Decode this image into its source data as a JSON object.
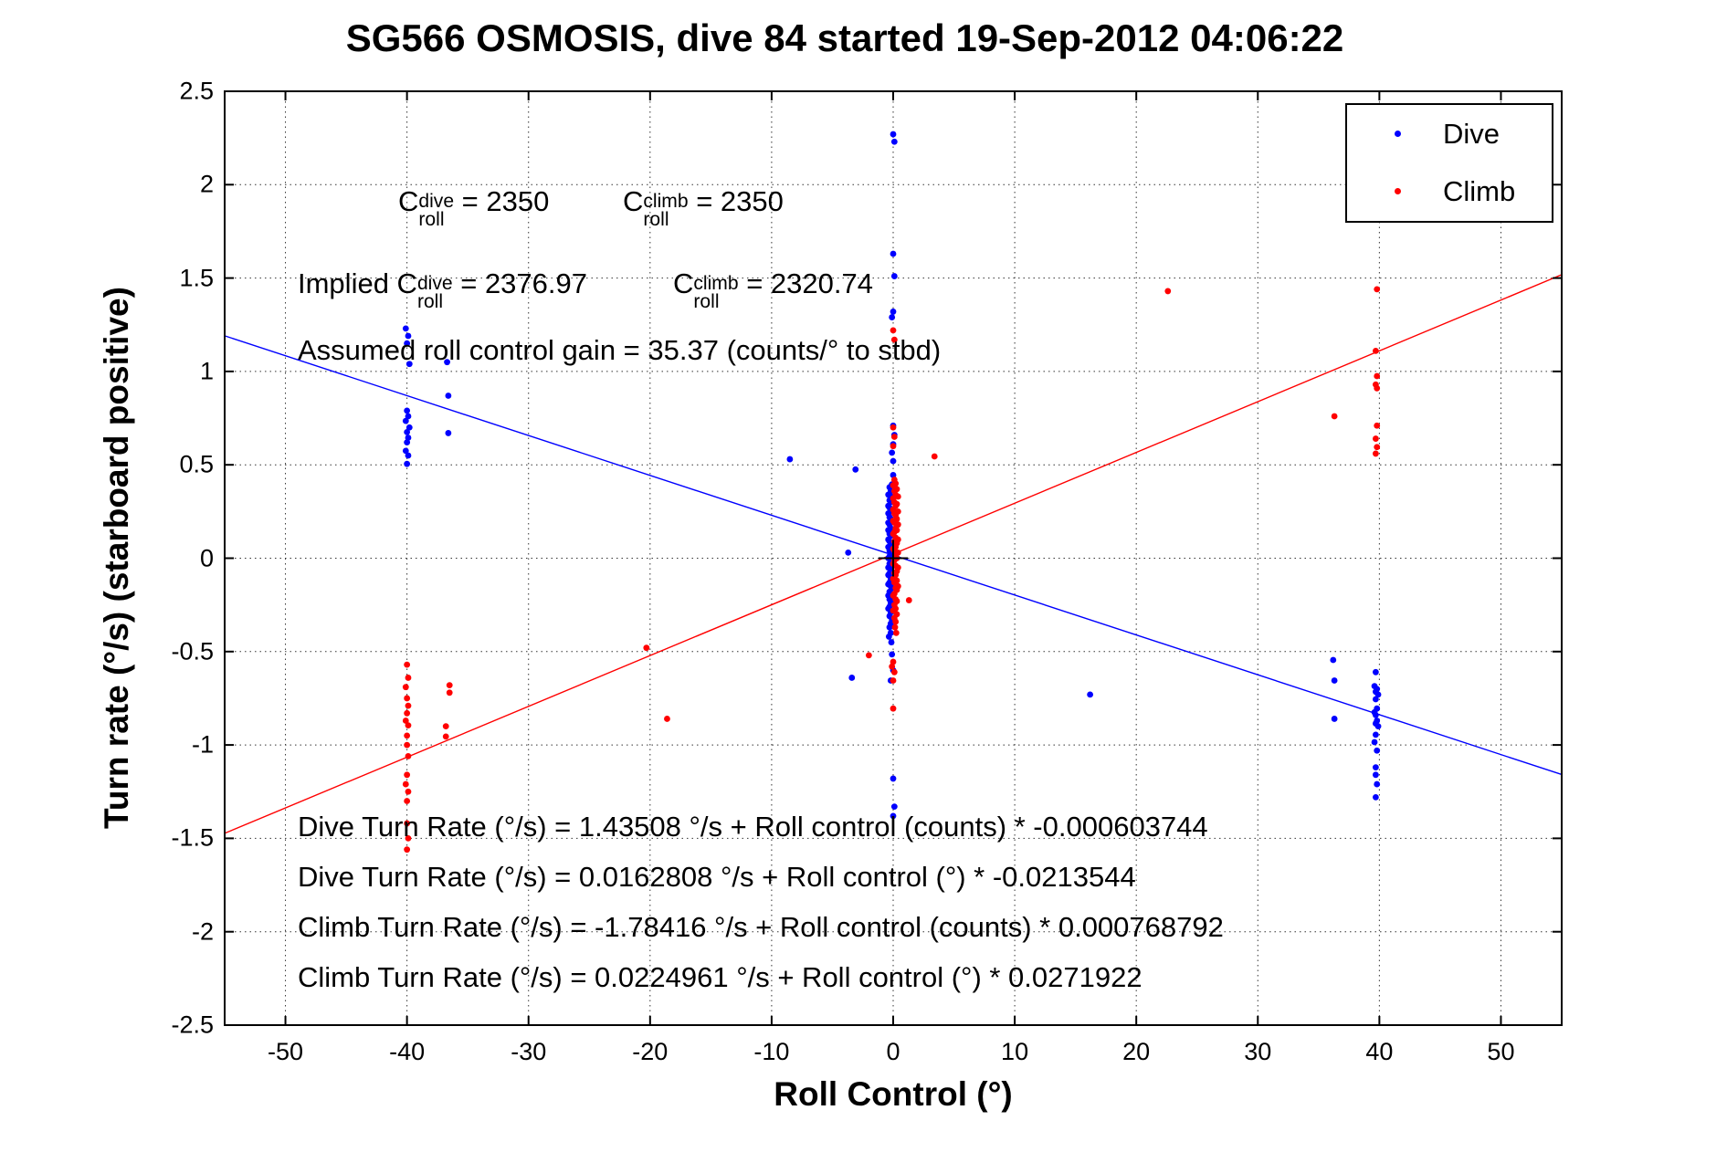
{
  "title": "SG566 OSMOSIS, dive 84 started 19-Sep-2012 04:06:22",
  "legend": {
    "items": [
      {
        "label": "Dive",
        "color": "#0000ff"
      },
      {
        "label": "Climb",
        "color": "#ff0000"
      }
    ]
  },
  "annotations": {
    "c_dive": {
      "base": "C",
      "sup": "dive",
      "sub": "roll",
      "eq": " = 2350"
    },
    "c_climb": {
      "base": "C",
      "sup": "climb",
      "sub": "roll",
      "eq": " = 2350"
    },
    "implied_prefix": "Implied ",
    "c_dive_implied": {
      "base": "C",
      "sup": "dive",
      "sub": "roll",
      "eq": " = 2376.97"
    },
    "c_climb_implied": {
      "base": "C",
      "sup": "climb",
      "sub": "roll",
      "eq": " = 2320.74"
    },
    "gain_line": "Assumed roll control gain = 35.37 (counts/° to stbd)",
    "equations": [
      "Dive Turn Rate (°/s) = 1.43508 °/s + Roll control (counts) * -0.000603744",
      "Dive Turn Rate (°/s) = 0.0162808 °/s + Roll control (°) * -0.0213544",
      "Climb Turn Rate (°/s) = -1.78416 °/s + Roll control (counts) * 0.000768792",
      "Climb Turn Rate (°/s) = 0.0224961 °/s + Roll control (°) * 0.0271922"
    ]
  },
  "chart_data": {
    "type": "scatter",
    "title": "SG566 OSMOSIS, dive 84 started 19-Sep-2012 04:06:22",
    "xlabel": "Roll Control (°)",
    "ylabel": "Turn rate (°/s) (starboard positive)",
    "xlim": [
      -55,
      55
    ],
    "ylim": [
      -2.5,
      2.5
    ],
    "xticks": [
      -50,
      -40,
      -30,
      -20,
      -10,
      0,
      10,
      20,
      30,
      40,
      50
    ],
    "xtick_labels": [
      "-50",
      "-40",
      "-30",
      "-20",
      "-10",
      "0",
      "10",
      "20",
      "30",
      "40",
      "50"
    ],
    "yticks": [
      -2.5,
      -2,
      -1.5,
      -1,
      -0.5,
      0,
      0.5,
      1,
      1.5,
      2,
      2.5
    ],
    "ytick_labels": [
      "-2.5",
      "-2",
      "-1.5",
      "-1",
      "-0.5",
      "0",
      "0.5",
      "1",
      "1.5",
      "2",
      "2.5"
    ],
    "grid": true,
    "legend_position": "top-right",
    "origin_marker": {
      "x": 0,
      "y": 0,
      "type": "plus",
      "color": "#000000"
    },
    "fit_lines": [
      {
        "name": "dive-fit",
        "color": "#0000ff",
        "intercept": 0.0162808,
        "slope": -0.0213544
      },
      {
        "name": "climb-fit",
        "color": "#ff0000",
        "intercept": 0.0224961,
        "slope": 0.0271922
      }
    ],
    "series": [
      {
        "name": "Dive",
        "color": "#0000ff",
        "marker": "dot",
        "points": [
          [
            -40.1,
            1.23
          ],
          [
            -39.9,
            1.19
          ],
          [
            -40,
            1.15
          ],
          [
            -39.8,
            1.04
          ],
          [
            -36.7,
            1.05
          ],
          [
            -40,
            0.79
          ],
          [
            -39.9,
            0.76
          ],
          [
            -40.1,
            0.735
          ],
          [
            -39.8,
            0.7
          ],
          [
            -40,
            0.675
          ],
          [
            -39.9,
            0.645
          ],
          [
            -40,
            0.62
          ],
          [
            -40.1,
            0.575
          ],
          [
            -39.9,
            0.55
          ],
          [
            -40,
            0.505
          ],
          [
            -36.6,
            0.87
          ],
          [
            -36.6,
            0.67
          ],
          [
            -8.5,
            0.53
          ],
          [
            -3.1,
            0.475
          ],
          [
            -3.7,
            0.03
          ],
          [
            -3.4,
            -0.64
          ],
          [
            16.2,
            -0.73
          ],
          [
            0,
            2.27
          ],
          [
            0.1,
            2.23
          ],
          [
            0,
            1.63
          ],
          [
            0.1,
            1.51
          ],
          [
            0,
            1.32
          ],
          [
            -0.1,
            1.29
          ],
          [
            0,
            0.71
          ],
          [
            0.1,
            0.66
          ],
          [
            0,
            0.61
          ],
          [
            -0.1,
            0.565
          ],
          [
            0,
            0.52
          ],
          [
            0,
            0.445
          ],
          [
            -0.1,
            0.395
          ],
          [
            -0.1,
            -0.515
          ],
          [
            0,
            -0.6
          ],
          [
            -0.2,
            -0.655
          ],
          [
            0,
            -1.18
          ],
          [
            0.1,
            -1.33
          ],
          [
            0,
            -1.38
          ],
          [
            -0.3,
            0.38
          ],
          [
            -0.2,
            0.36
          ],
          [
            -0.4,
            0.34
          ],
          [
            -0.1,
            0.33
          ],
          [
            -0.3,
            0.31
          ],
          [
            -0.2,
            0.3
          ],
          [
            -0.4,
            0.28
          ],
          [
            -0.3,
            0.27
          ],
          [
            -0.1,
            0.26
          ],
          [
            -0.2,
            0.25
          ],
          [
            -0.4,
            0.24
          ],
          [
            -0.3,
            0.22
          ],
          [
            -0.2,
            0.21
          ],
          [
            -0.1,
            0.2
          ],
          [
            -0.4,
            0.19
          ],
          [
            -0.3,
            0.18
          ],
          [
            -0.2,
            0.16
          ],
          [
            -0.4,
            0.15
          ],
          [
            -0.1,
            0.14
          ],
          [
            -0.3,
            0.13
          ],
          [
            -0.2,
            0.12
          ],
          [
            -0.4,
            0.1
          ],
          [
            -0.3,
            0.09
          ],
          [
            -0.1,
            0.08
          ],
          [
            -0.2,
            0.07
          ],
          [
            -0.4,
            0.06
          ],
          [
            -0.3,
            0.04
          ],
          [
            -0.2,
            0.03
          ],
          [
            -0.1,
            0.02
          ],
          [
            -0.3,
            0.01
          ],
          [
            -0.4,
            0
          ],
          [
            -0.2,
            -0.01
          ],
          [
            -0.3,
            -0.03
          ],
          [
            -0.1,
            -0.04
          ],
          [
            -0.4,
            -0.05
          ],
          [
            -0.2,
            -0.06
          ],
          [
            -0.3,
            -0.08
          ],
          [
            -0.4,
            -0.09
          ],
          [
            -0.1,
            -0.1
          ],
          [
            -0.2,
            -0.11
          ],
          [
            -0.3,
            -0.13
          ],
          [
            -0.4,
            -0.14
          ],
          [
            -0.2,
            -0.15
          ],
          [
            -0.1,
            -0.16
          ],
          [
            -0.3,
            -0.18
          ],
          [
            -0.2,
            -0.19
          ],
          [
            -0.4,
            -0.2
          ],
          [
            -0.3,
            -0.22
          ],
          [
            -0.1,
            -0.23
          ],
          [
            -0.2,
            -0.24
          ],
          [
            -0.3,
            -0.26
          ],
          [
            -0.4,
            -0.27
          ],
          [
            -0.2,
            -0.29
          ],
          [
            -0.3,
            -0.31
          ],
          [
            -0.1,
            -0.33
          ],
          [
            -0.2,
            -0.35
          ],
          [
            -0.3,
            -0.37
          ],
          [
            -0.2,
            -0.4
          ],
          [
            -0.35,
            -0.42
          ],
          [
            -0.15,
            -0.45
          ],
          [
            36.2,
            -0.545
          ],
          [
            39.7,
            -0.61
          ],
          [
            36.3,
            -0.655
          ],
          [
            39.6,
            -0.685
          ],
          [
            39.8,
            -0.7
          ],
          [
            39.7,
            -0.715
          ],
          [
            39.9,
            -0.73
          ],
          [
            39.7,
            -0.755
          ],
          [
            39.8,
            -0.805
          ],
          [
            39.6,
            -0.825
          ],
          [
            39.7,
            -0.84
          ],
          [
            36.3,
            -0.86
          ],
          [
            39.8,
            -0.87
          ],
          [
            39.7,
            -0.885
          ],
          [
            39.9,
            -0.9
          ],
          [
            39.7,
            -0.945
          ],
          [
            39.6,
            -0.985
          ],
          [
            39.8,
            -1.03
          ],
          [
            39.7,
            -1.12
          ],
          [
            39.7,
            -1.16
          ],
          [
            39.8,
            -1.21
          ],
          [
            39.7,
            -1.28
          ]
        ]
      },
      {
        "name": "Climb",
        "color": "#ff0000",
        "marker": "dot",
        "points": [
          [
            -40,
            -0.57
          ],
          [
            -39.9,
            -0.64
          ],
          [
            -40.1,
            -0.69
          ],
          [
            -36.5,
            -0.68
          ],
          [
            -36.5,
            -0.72
          ],
          [
            -40,
            -0.75
          ],
          [
            -39.9,
            -0.79
          ],
          [
            -40,
            -0.83
          ],
          [
            -40.1,
            -0.87
          ],
          [
            -36.8,
            -0.9
          ],
          [
            -39.9,
            -0.895
          ],
          [
            -36.8,
            -0.955
          ],
          [
            -40,
            -0.95
          ],
          [
            -40,
            -1.0
          ],
          [
            -39.9,
            -1.06
          ],
          [
            -40,
            -1.16
          ],
          [
            -40.1,
            -1.21
          ],
          [
            -39.9,
            -1.25
          ],
          [
            -40,
            -1.3
          ],
          [
            -40,
            -1.42
          ],
          [
            -39.9,
            -1.5
          ],
          [
            -40,
            -1.56
          ],
          [
            -20.3,
            -0.48
          ],
          [
            -18.6,
            -0.86
          ],
          [
            -2,
            -0.52
          ],
          [
            0,
            -0.555
          ],
          [
            -0.1,
            -0.58
          ],
          [
            0.1,
            -0.61
          ],
          [
            0,
            -0.655
          ],
          [
            0,
            -0.805
          ],
          [
            1.3,
            -0.225
          ],
          [
            3.4,
            0.545
          ],
          [
            22.6,
            1.43
          ],
          [
            0,
            1.22
          ],
          [
            0.1,
            1.17
          ],
          [
            0,
            0.7
          ],
          [
            0.1,
            0.65
          ],
          [
            0,
            0.6
          ],
          [
            0.1,
            0.42
          ],
          [
            0.2,
            0.4
          ],
          [
            0,
            0.39
          ],
          [
            0.3,
            0.37
          ],
          [
            0.1,
            0.36
          ],
          [
            0.2,
            0.34
          ],
          [
            0.4,
            0.33
          ],
          [
            0,
            0.32
          ],
          [
            0.1,
            0.3
          ],
          [
            0.3,
            0.29
          ],
          [
            0.2,
            0.28
          ],
          [
            0,
            0.26
          ],
          [
            0.4,
            0.25
          ],
          [
            0.1,
            0.24
          ],
          [
            0.2,
            0.23
          ],
          [
            0.3,
            0.21
          ],
          [
            0,
            0.2
          ],
          [
            0.1,
            0.19
          ],
          [
            0.4,
            0.18
          ],
          [
            0.2,
            0.16
          ],
          [
            0.3,
            0.15
          ],
          [
            0.1,
            0.14
          ],
          [
            0,
            0.13
          ],
          [
            0.2,
            0.11
          ],
          [
            0.4,
            0.1
          ],
          [
            0.1,
            0.09
          ],
          [
            0.3,
            0.08
          ],
          [
            0.2,
            0.06
          ],
          [
            0,
            0.05
          ],
          [
            0.1,
            0.04
          ],
          [
            0.4,
            0.03
          ],
          [
            0.2,
            0.01
          ],
          [
            0.3,
            0
          ],
          [
            0.1,
            -0.01
          ],
          [
            0,
            -0.03
          ],
          [
            0.2,
            -0.04
          ],
          [
            0.4,
            -0.05
          ],
          [
            0.3,
            -0.07
          ],
          [
            0.1,
            -0.08
          ],
          [
            0.2,
            -0.09
          ],
          [
            0,
            -0.11
          ],
          [
            0.3,
            -0.12
          ],
          [
            0.1,
            -0.13
          ],
          [
            0.4,
            -0.15
          ],
          [
            0.2,
            -0.16
          ],
          [
            0.3,
            -0.17
          ],
          [
            0.1,
            -0.19
          ],
          [
            0,
            -0.2
          ],
          [
            0.2,
            -0.22
          ],
          [
            0.3,
            -0.23
          ],
          [
            0.1,
            -0.25
          ],
          [
            0.2,
            -0.27
          ],
          [
            0,
            -0.28
          ],
          [
            0.3,
            -0.3
          ],
          [
            0.1,
            -0.32
          ],
          [
            0.2,
            -0.34
          ],
          [
            0.15,
            -0.37
          ],
          [
            0.25,
            -0.4
          ],
          [
            39.8,
            1.44
          ],
          [
            39.7,
            1.11
          ],
          [
            39.8,
            0.975
          ],
          [
            39.7,
            0.93
          ],
          [
            39.8,
            0.91
          ],
          [
            36.3,
            0.76
          ],
          [
            39.8,
            0.71
          ],
          [
            39.7,
            0.64
          ],
          [
            39.8,
            0.595
          ],
          [
            39.7,
            0.56
          ]
        ]
      }
    ]
  }
}
